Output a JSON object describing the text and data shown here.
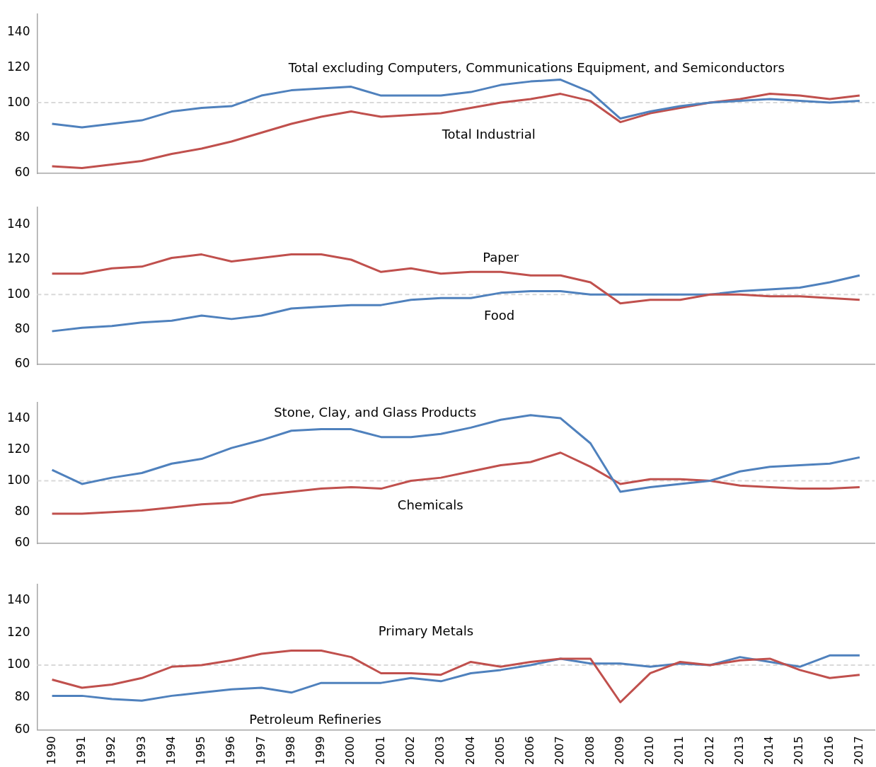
{
  "chart_data": [
    {
      "type": "line",
      "categories": [
        "1990",
        "1991",
        "1992",
        "1993",
        "1994",
        "1995",
        "1996",
        "1997",
        "1998",
        "1999",
        "2000",
        "2001",
        "2002",
        "2003",
        "2004",
        "2005",
        "2006",
        "2007",
        "2008",
        "2009",
        "2010",
        "2011",
        "2012",
        "2013",
        "2014",
        "2015",
        "2016",
        "2017"
      ],
      "ylim": [
        60,
        150
      ],
      "yticks": [
        60,
        80,
        100,
        120,
        140
      ],
      "grid": false,
      "tick_labels": "y",
      "line_style": "solid",
      "ref_lines": [
        {
          "axis": "y",
          "value": 100,
          "color": "#d9d9d9",
          "line_style": "dashed"
        }
      ],
      "series": [
        {
          "name": "Total excluding Computers, Communications Equipment, and Semiconductors",
          "color": "#4f81bd",
          "values": [
            88,
            86,
            88,
            90,
            95,
            97,
            98,
            104,
            107,
            108,
            109,
            104,
            104,
            104,
            106,
            110,
            112,
            113,
            106,
            91,
            95,
            98,
            100,
            101,
            102,
            101,
            100,
            101
          ]
        },
        {
          "name": "Total Industrial",
          "color": "#c0504d",
          "values": [
            64,
            63,
            65,
            67,
            71,
            74,
            78,
            83,
            88,
            92,
            95,
            92,
            93,
            94,
            97,
            100,
            102,
            105,
            101,
            89,
            94,
            97,
            100,
            102,
            105,
            104,
            102,
            104
          ]
        }
      ]
    },
    {
      "type": "line",
      "categories": [
        "1990",
        "1991",
        "1992",
        "1993",
        "1994",
        "1995",
        "1996",
        "1997",
        "1998",
        "1999",
        "2000",
        "2001",
        "2002",
        "2003",
        "2004",
        "2005",
        "2006",
        "2007",
        "2008",
        "2009",
        "2010",
        "2011",
        "2012",
        "2013",
        "2014",
        "2015",
        "2016",
        "2017"
      ],
      "ylim": [
        60,
        150
      ],
      "yticks": [
        60,
        80,
        100,
        120,
        140
      ],
      "grid": false,
      "tick_labels": "y",
      "line_style": "solid",
      "ref_lines": [
        {
          "axis": "y",
          "value": 100,
          "color": "#d9d9d9",
          "line_style": "dashed"
        }
      ],
      "series": [
        {
          "name": "Paper",
          "color": "#c0504d",
          "values": [
            112,
            112,
            115,
            116,
            121,
            123,
            119,
            121,
            123,
            123,
            120,
            113,
            115,
            112,
            113,
            113,
            111,
            111,
            107,
            95,
            97,
            97,
            100,
            100,
            99,
            99,
            98,
            97
          ]
        },
        {
          "name": "Food",
          "color": "#4f81bd",
          "values": [
            79,
            81,
            82,
            84,
            85,
            88,
            86,
            88,
            92,
            93,
            94,
            94,
            97,
            98,
            98,
            101,
            102,
            102,
            100,
            100,
            100,
            100,
            100,
            102,
            103,
            104,
            107,
            111
          ]
        }
      ]
    },
    {
      "type": "line",
      "categories": [
        "1990",
        "1991",
        "1992",
        "1993",
        "1994",
        "1995",
        "1996",
        "1997",
        "1998",
        "1999",
        "2000",
        "2001",
        "2002",
        "2003",
        "2004",
        "2005",
        "2006",
        "2007",
        "2008",
        "2009",
        "2010",
        "2011",
        "2012",
        "2013",
        "2014",
        "2015",
        "2016",
        "2017"
      ],
      "ylim": [
        60,
        150
      ],
      "yticks": [
        60,
        80,
        100,
        120,
        140
      ],
      "grid": false,
      "tick_labels": "y",
      "line_style": "solid",
      "ref_lines": [
        {
          "axis": "y",
          "value": 100,
          "color": "#d9d9d9",
          "line_style": "dashed"
        }
      ],
      "series": [
        {
          "name": "Stone, Clay, and Glass Products",
          "color": "#4f81bd",
          "values": [
            107,
            98,
            102,
            105,
            111,
            114,
            121,
            126,
            132,
            133,
            133,
            128,
            128,
            130,
            134,
            139,
            142,
            140,
            124,
            93,
            96,
            98,
            100,
            106,
            109,
            110,
            111,
            115
          ]
        },
        {
          "name": "Chemicals",
          "color": "#c0504d",
          "values": [
            79,
            79,
            80,
            81,
            83,
            85,
            86,
            91,
            93,
            95,
            96,
            95,
            100,
            102,
            106,
            110,
            112,
            118,
            109,
            98,
            101,
            101,
            100,
            97,
            96,
            95,
            95,
            96
          ]
        }
      ]
    },
    {
      "type": "line",
      "categories": [
        "1990",
        "1991",
        "1992",
        "1993",
        "1994",
        "1995",
        "1996",
        "1997",
        "1998",
        "1999",
        "2000",
        "2001",
        "2002",
        "2003",
        "2004",
        "2005",
        "2006",
        "2007",
        "2008",
        "2009",
        "2010",
        "2011",
        "2012",
        "2013",
        "2014",
        "2015",
        "2016",
        "2017"
      ],
      "ylim": [
        60,
        150
      ],
      "yticks": [
        60,
        80,
        100,
        120,
        140
      ],
      "grid": false,
      "line_style": "solid",
      "ref_lines": [
        {
          "axis": "y",
          "value": 100,
          "color": "#d9d9d9",
          "line_style": "dashed"
        }
      ],
      "series": [
        {
          "name": "Primary Metals",
          "color": "#c0504d",
          "values": [
            91,
            86,
            88,
            92,
            99,
            100,
            103,
            107,
            109,
            109,
            105,
            95,
            95,
            94,
            102,
            99,
            102,
            104,
            104,
            77,
            95,
            102,
            100,
            103,
            104,
            97,
            92,
            94
          ]
        },
        {
          "name": "Petroleum Refineries",
          "color": "#4f81bd",
          "values": [
            81,
            81,
            79,
            78,
            81,
            83,
            85,
            86,
            83,
            89,
            89,
            89,
            92,
            90,
            95,
            97,
            100,
            104,
            101,
            101,
            99,
            101,
            100,
            105,
            102,
            99,
            106,
            106
          ]
        }
      ]
    }
  ]
}
